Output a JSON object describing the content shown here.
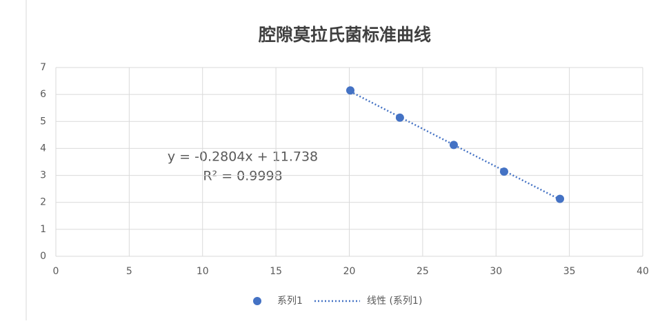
{
  "chart_data": {
    "type": "scatter",
    "title": "腔隙莫拉氏菌标准曲线",
    "series": [
      {
        "name": "系列1",
        "color": "#4472c4",
        "x": [
          20.07,
          23.45,
          27.12,
          30.55,
          34.36
        ],
        "values": [
          6.15,
          5.14,
          4.13,
          3.14,
          2.13
        ]
      }
    ],
    "trendline": {
      "name": "线性 (系列1)",
      "color": "#4472c4",
      "equation": "y = -0.2804x + 11.738",
      "r_squared": "R² = 0.9998"
    },
    "xlim": [
      0,
      40
    ],
    "xticks": [
      0,
      5,
      10,
      15,
      20,
      25,
      30,
      35,
      40
    ],
    "ylim": [
      0,
      7
    ],
    "yticks": [
      0,
      1,
      2,
      3,
      4,
      5,
      6,
      7
    ],
    "grid": true,
    "legend": "bottom"
  }
}
